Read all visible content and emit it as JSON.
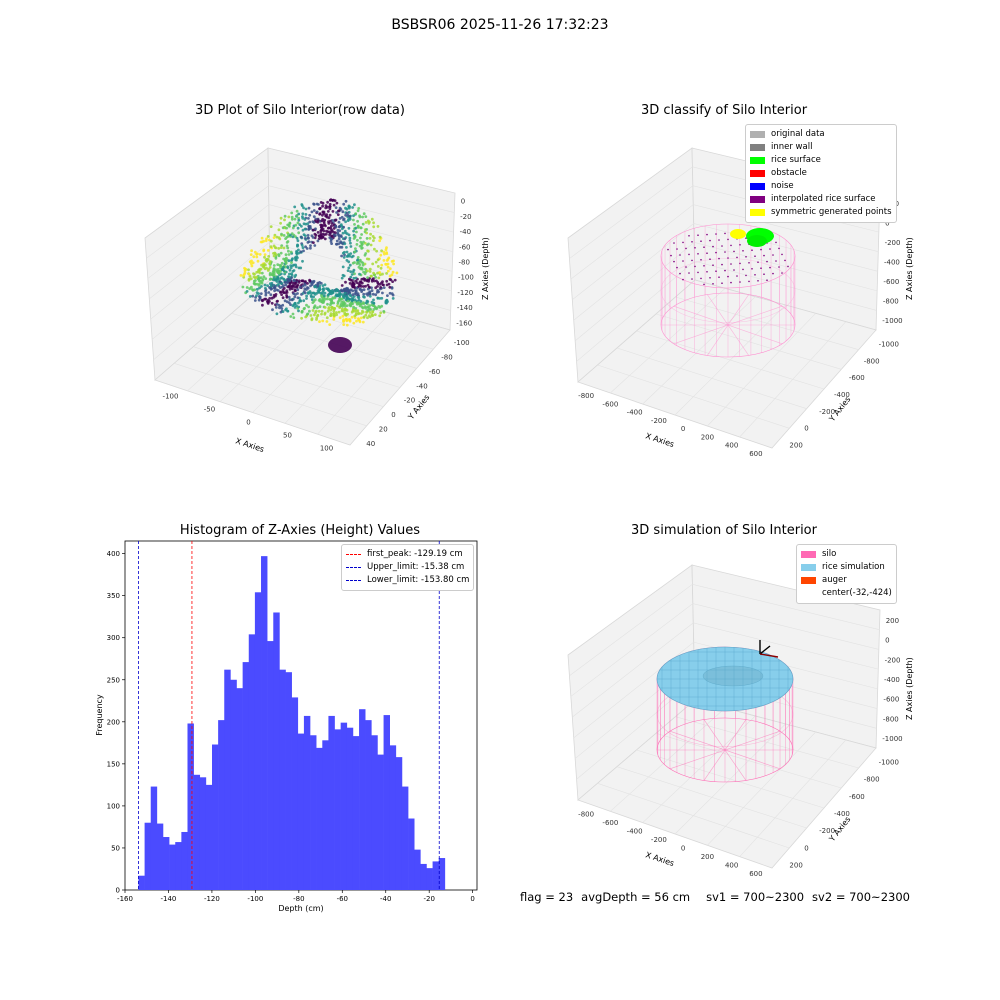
{
  "figure": {
    "title": "BSBSR06 2025-11-26 17:32:23",
    "footer": {
      "flag": "flag = 23",
      "avg_depth": "avgDepth = 56 cm",
      "sv1": "sv1 = 700~2300",
      "sv2": "sv2 = 700~2300"
    }
  },
  "panels": [
    {
      "title": "3D Plot of Silo Interior(row data)",
      "xlabel": "X Axies",
      "ylabel": "Y Axies",
      "zlabel": "Z Axies (Depth)",
      "xticks": [
        "-100",
        "-50",
        "0",
        "50",
        "100"
      ],
      "yticks": [
        "-100",
        "-80",
        "-60",
        "-40",
        "-20",
        "0",
        "20",
        "40"
      ],
      "zticks": [
        "0",
        "-20",
        "-40",
        "-60",
        "-80",
        "-100",
        "-120",
        "-140",
        "-160"
      ]
    },
    {
      "title": "3D classify of Silo Interior",
      "xlabel": "X Axies",
      "ylabel": "Y Axies",
      "zlabel": "Z Axies (Depth)",
      "xticks": [
        "-800",
        "-600",
        "-400",
        "-200",
        "0",
        "200",
        "400",
        "600"
      ],
      "yticks": [
        "-1000",
        "-800",
        "-600",
        "-400",
        "-200",
        "0",
        "200"
      ],
      "zticks": [
        "200",
        "0",
        "-200",
        "-400",
        "-600",
        "-800",
        "-1000"
      ],
      "legend": [
        {
          "label": "original data",
          "color": "#b0b0b0"
        },
        {
          "label": "inner wall",
          "color": "#808080"
        },
        {
          "label": "rice surface",
          "color": "#00ff00"
        },
        {
          "label": "obstacle",
          "color": "#ff0000"
        },
        {
          "label": "noise",
          "color": "#0000ff"
        },
        {
          "label": "interpolated rice surface",
          "color": "#800080"
        },
        {
          "label": "symmetric generated points",
          "color": "#ffff00"
        }
      ]
    },
    {
      "title": "3D simulation of Silo Interior",
      "xlabel": "X Axies",
      "ylabel": "Y Axies",
      "zlabel": "Z Axies (Depth)",
      "xticks": [
        "-800",
        "-600",
        "-400",
        "-200",
        "0",
        "200",
        "400",
        "600"
      ],
      "yticks": [
        "-1000",
        "-800",
        "-600",
        "-400",
        "-200",
        "0",
        "200"
      ],
      "zticks": [
        "200",
        "0",
        "-200",
        "-400",
        "-600",
        "-800",
        "-1000"
      ],
      "legend": [
        {
          "label": "silo",
          "color": "#ff69b4"
        },
        {
          "label": "rice simulation",
          "color": "#87ceeb"
        },
        {
          "label": "auger",
          "color": "#ff4500"
        },
        {
          "label": "center(-32,-424)",
          "color": ""
        }
      ]
    }
  ],
  "chart_data": {
    "type": "bar",
    "title": "Histogram of Z-Axies (Height) Values",
    "xlabel": "Depth (cm)",
    "ylabel": "Frequency",
    "xlim": [
      -160,
      2
    ],
    "ylim": [
      0,
      415
    ],
    "xticks": [
      -160,
      -140,
      -120,
      -100,
      -80,
      -60,
      -40,
      -20,
      0
    ],
    "yticks": [
      0,
      50,
      100,
      150,
      200,
      250,
      300,
      350,
      400
    ],
    "bin_start": -153.8,
    "bin_width": 2.82,
    "bar_color": "#4b4bff",
    "values": [
      17,
      80,
      123,
      79,
      63,
      54,
      57,
      69,
      198,
      137,
      134,
      125,
      173,
      202,
      262,
      250,
      240,
      271,
      304,
      354,
      397,
      296,
      330,
      262,
      259,
      229,
      186,
      207,
      184,
      169,
      178,
      207,
      191,
      199,
      193,
      183,
      215,
      202,
      184,
      161,
      208,
      172,
      158,
      123,
      85,
      48,
      31,
      26,
      34,
      38
    ],
    "vlines": [
      {
        "label": "first_peak: -129.19 cm",
        "x": -129.19,
        "color": "#ff0000"
      },
      {
        "label": "Upper_limit: -15.38 cm",
        "x": -15.38,
        "color": "#0000cc"
      },
      {
        "label": "Lower_limit: -153.80 cm",
        "x": -153.8,
        "color": "#0000cc"
      }
    ],
    "legend_position": "upper-right"
  }
}
